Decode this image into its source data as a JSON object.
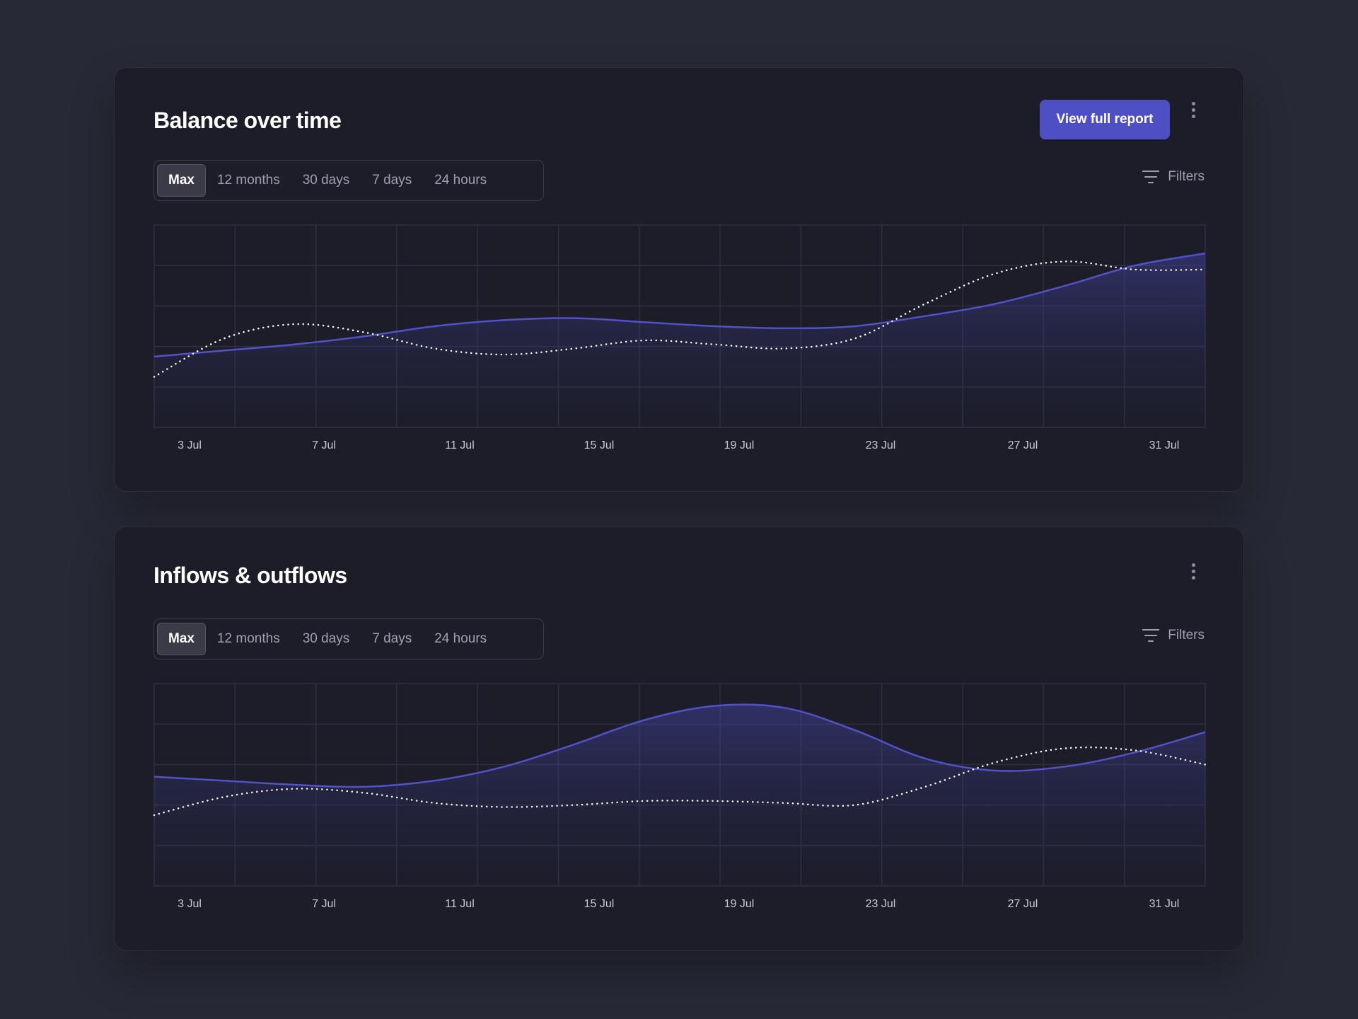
{
  "colors": {
    "accent": "#4f4fc4",
    "line": "#5252c8",
    "dotted": "#ffffff",
    "grid": "#2e3040"
  },
  "icons": {
    "more": "more-vertical-icon",
    "filters": "filter-lines-icon"
  },
  "cards": [
    {
      "title": "Balance over time",
      "report_label": "View full report",
      "ranges": [
        "Max",
        "12 months",
        "30 days",
        "7 days",
        "24 hours"
      ],
      "active_range": "Max",
      "filters_label": "Filters"
    },
    {
      "title": "Inflows & outflows",
      "ranges": [
        "Max",
        "12 months",
        "30 days",
        "7 days",
        "24 hours"
      ],
      "active_range": "Max",
      "filters_label": "Filters"
    }
  ],
  "chart_data": [
    {
      "type": "area",
      "title": "Balance over time",
      "xlabel": "",
      "ylabel": "",
      "x_ticks": [
        "3 Jul",
        "7 Jul",
        "11 Jul",
        "15 Jul",
        "19 Jul",
        "23 Jul",
        "27 Jul",
        "31 Jul"
      ],
      "x": [
        2,
        4,
        6,
        8,
        10,
        12,
        14,
        16,
        18,
        20,
        22,
        24,
        26,
        28,
        30,
        32
      ],
      "xlim": [
        2,
        32
      ],
      "ylim": [
        0,
        5
      ],
      "grid": true,
      "series": [
        {
          "style": "solid-area",
          "values": [
            1.75,
            1.9,
            2.05,
            2.25,
            2.5,
            2.65,
            2.7,
            2.6,
            2.5,
            2.45,
            2.5,
            2.75,
            3.05,
            3.5,
            4.0,
            4.3
          ]
        },
        {
          "style": "dotted",
          "values": [
            1.25,
            2.2,
            2.55,
            2.35,
            1.95,
            1.8,
            1.95,
            2.15,
            2.05,
            1.95,
            2.2,
            3.05,
            3.8,
            4.1,
            3.9,
            3.9
          ]
        }
      ]
    },
    {
      "type": "area",
      "title": "Inflows & outflows",
      "xlabel": "",
      "ylabel": "",
      "x_ticks": [
        "3 Jul",
        "7 Jul",
        "11 Jul",
        "15 Jul",
        "19 Jul",
        "23 Jul",
        "27 Jul",
        "31 Jul"
      ],
      "x": [
        2,
        4,
        6,
        8,
        10,
        12,
        14,
        16,
        18,
        20,
        22,
        24,
        26,
        28,
        30,
        32
      ],
      "xlim": [
        2,
        32
      ],
      "ylim": [
        0,
        5
      ],
      "grid": true,
      "series": [
        {
          "style": "solid-area",
          "values": [
            2.7,
            2.6,
            2.5,
            2.45,
            2.6,
            2.95,
            3.5,
            4.1,
            4.45,
            4.4,
            3.85,
            3.15,
            2.85,
            2.95,
            3.3,
            3.8
          ]
        },
        {
          "style": "dotted",
          "values": [
            1.75,
            2.2,
            2.4,
            2.3,
            2.05,
            1.95,
            2.0,
            2.1,
            2.1,
            2.05,
            2.0,
            2.45,
            3.05,
            3.4,
            3.35,
            3.0
          ]
        }
      ]
    }
  ]
}
